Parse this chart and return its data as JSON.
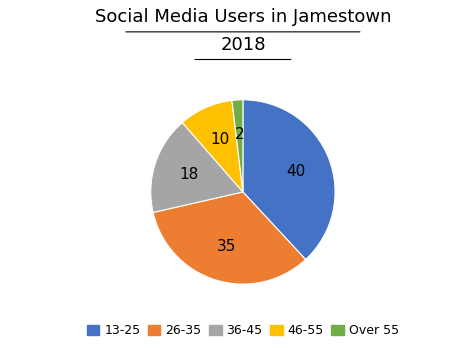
{
  "title_line1": "Social Media Users in Jamestown",
  "title_line2": "2018",
  "slices": [
    40,
    35,
    18,
    10,
    2
  ],
  "labels": [
    "13-25",
    "26-35",
    "36-45",
    "46-55",
    "Over 55"
  ],
  "colors": [
    "#4472C4",
    "#ED7D31",
    "#A5A5A5",
    "#FFC000",
    "#70AD47"
  ],
  "startangle": 90,
  "background_color": "#FFFFFF",
  "title_fontsize": 13,
  "legend_fontsize": 9,
  "label_fontsize": 11
}
